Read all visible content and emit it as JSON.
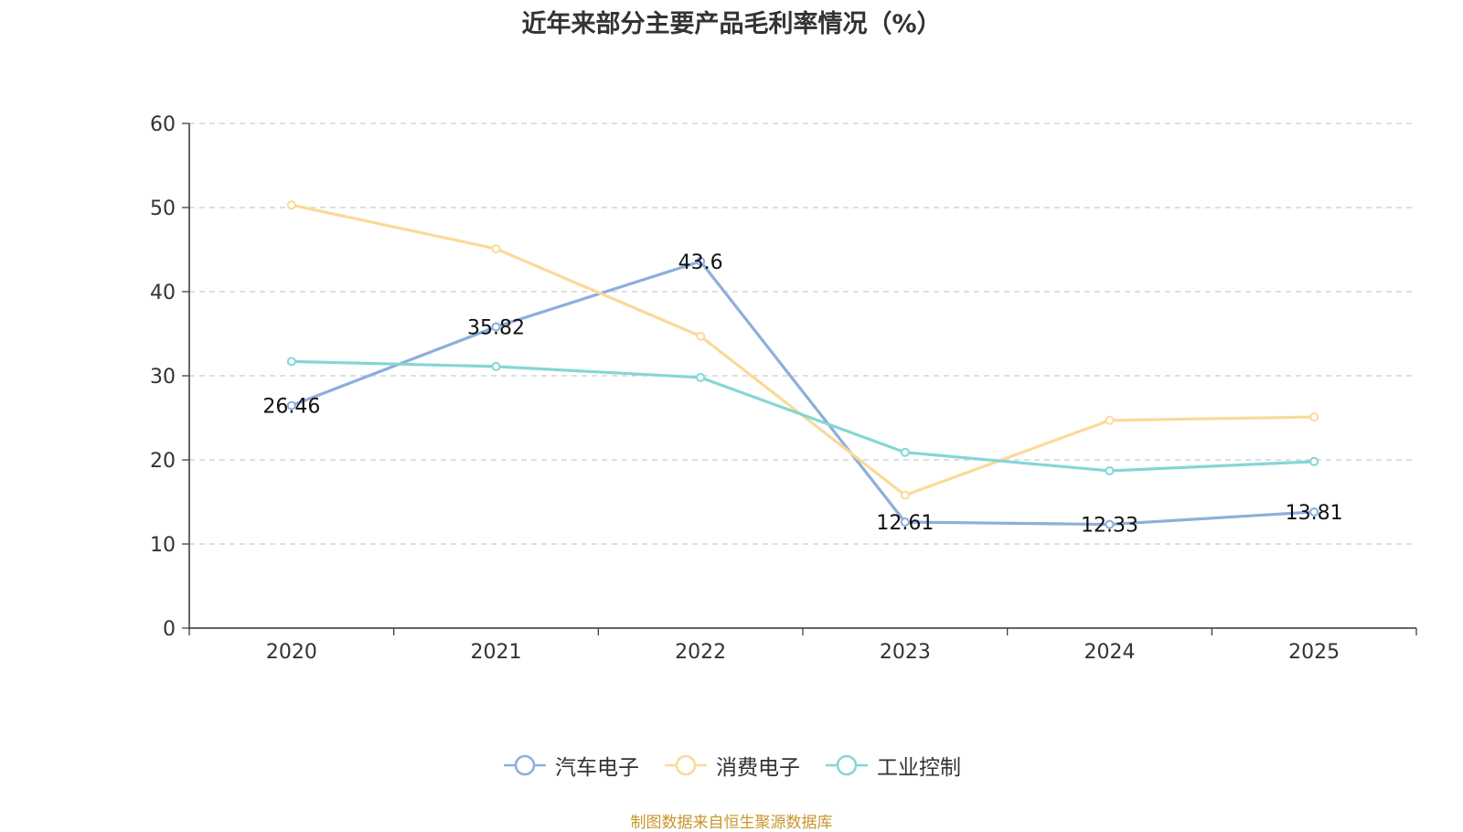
{
  "chart_data": {
    "type": "line",
    "title": "近年来部分主要产品毛利率情况（%）",
    "xlabel": "",
    "ylabel": "",
    "categories": [
      "2020",
      "2021",
      "2022",
      "2023",
      "2024",
      "2025"
    ],
    "ylim": [
      0,
      60
    ],
    "yticks": [
      0,
      10,
      20,
      30,
      40,
      50,
      60
    ],
    "grid": true,
    "legend_position": "bottom",
    "series": [
      {
        "name": "汽车电子",
        "color": "#8eaedb",
        "values": [
          26.46,
          35.82,
          43.6,
          12.61,
          12.33,
          13.81
        ],
        "labels": [
          "26.46",
          "35.82",
          "43.6",
          "12.61",
          "12.33",
          "13.81"
        ]
      },
      {
        "name": "消费电子",
        "color": "#fbd998",
        "values": [
          50.3,
          45.1,
          34.7,
          15.8,
          24.7,
          25.1
        ]
      },
      {
        "name": "工业控制",
        "color": "#85d6d6",
        "values": [
          31.7,
          31.1,
          29.8,
          20.9,
          18.7,
          19.8
        ]
      }
    ]
  },
  "source_note": "制图数据来自恒生聚源数据库"
}
